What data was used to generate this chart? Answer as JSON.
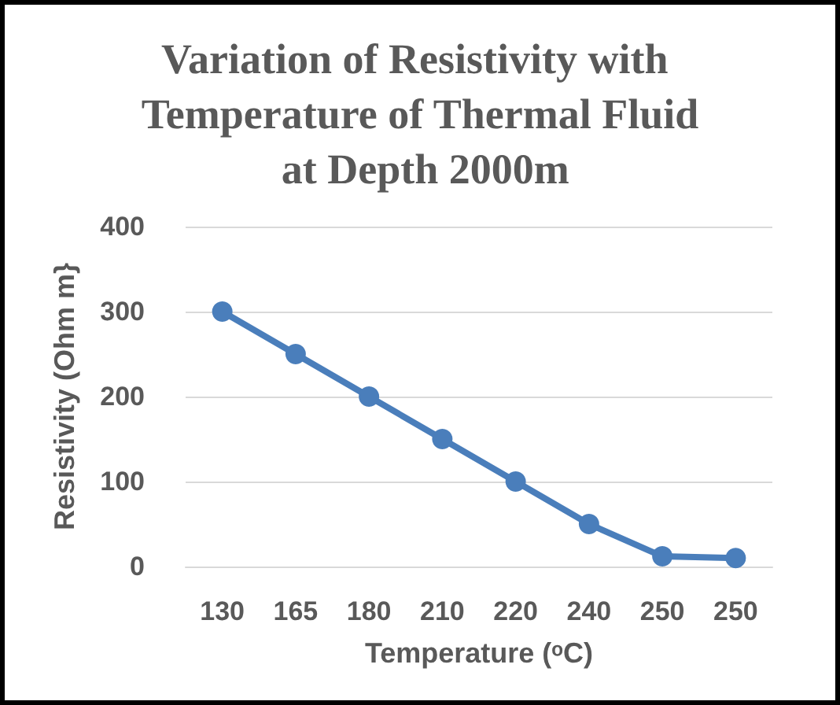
{
  "chart_data": {
    "type": "line",
    "title": "Variation of Resistivity with Temperature of Thermal Fluid at Depth 2000m",
    "xlabel": "Temperature (ᵒC)",
    "ylabel": "Resistivity (Ohm m}",
    "categories": [
      "130",
      "165",
      "180",
      "210",
      "220",
      "240",
      "250",
      "250"
    ],
    "series": [
      {
        "color": "#4a7ebb",
        "values": [
          300,
          250,
          200,
          150,
          100,
          50,
          12,
          10
        ]
      }
    ],
    "ylim": [
      0,
      400
    ],
    "yticks": [
      0,
      100,
      200,
      300,
      400
    ],
    "grid": "y",
    "marker": "circle",
    "line_style": "solid"
  }
}
